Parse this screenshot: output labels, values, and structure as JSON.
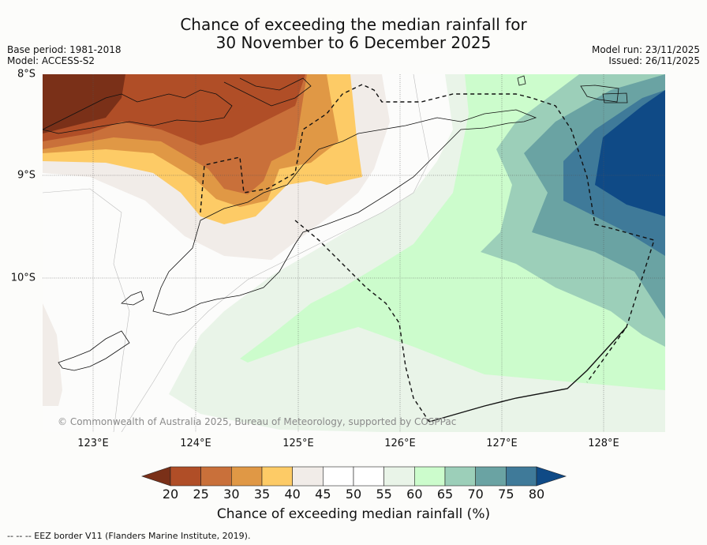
{
  "title": {
    "line1": "Chance of exceeding the median rainfall for",
    "line2": "30 November to 6 December 2025"
  },
  "meta_left": {
    "base_period": "Base period: 1981-2018",
    "model": "Model: ACCESS-S2"
  },
  "meta_right": {
    "model_run": "Model run: 23/11/2025",
    "issued": "Issued: 26/11/2025"
  },
  "axes": {
    "lat_labels": [
      "8°S",
      "9°S",
      "10°S"
    ],
    "lon_labels": [
      "123°E",
      "124°E",
      "125°E",
      "126°E",
      "127°E",
      "128°E"
    ]
  },
  "copyright": "© Commonwealth of Australia 2025, Bureau of Meteorology, supported by COSPPac",
  "colorbar": {
    "ticks": [
      "20",
      "25",
      "30",
      "35",
      "40",
      "45",
      "50",
      "55",
      "60",
      "65",
      "70",
      "75",
      "80"
    ],
    "colors": [
      "#7a3018",
      "#b04e27",
      "#c9703a",
      "#e09845",
      "#fdcb66",
      "#f1ece8",
      "#ffffff",
      "#ffffff",
      "#e9f4e8",
      "#ccfccc",
      "#9ccfb9",
      "#6aa3a3",
      "#3f7a99",
      "#0f4a86"
    ],
    "label": "Chance of exceeding median rainfall (%)"
  },
  "eez_note": "--  --  -- EEZ border V11 (Flanders Marine Institute, 2019).",
  "icons": {
    "land": "island-outline",
    "eez": "dashed-border"
  }
}
